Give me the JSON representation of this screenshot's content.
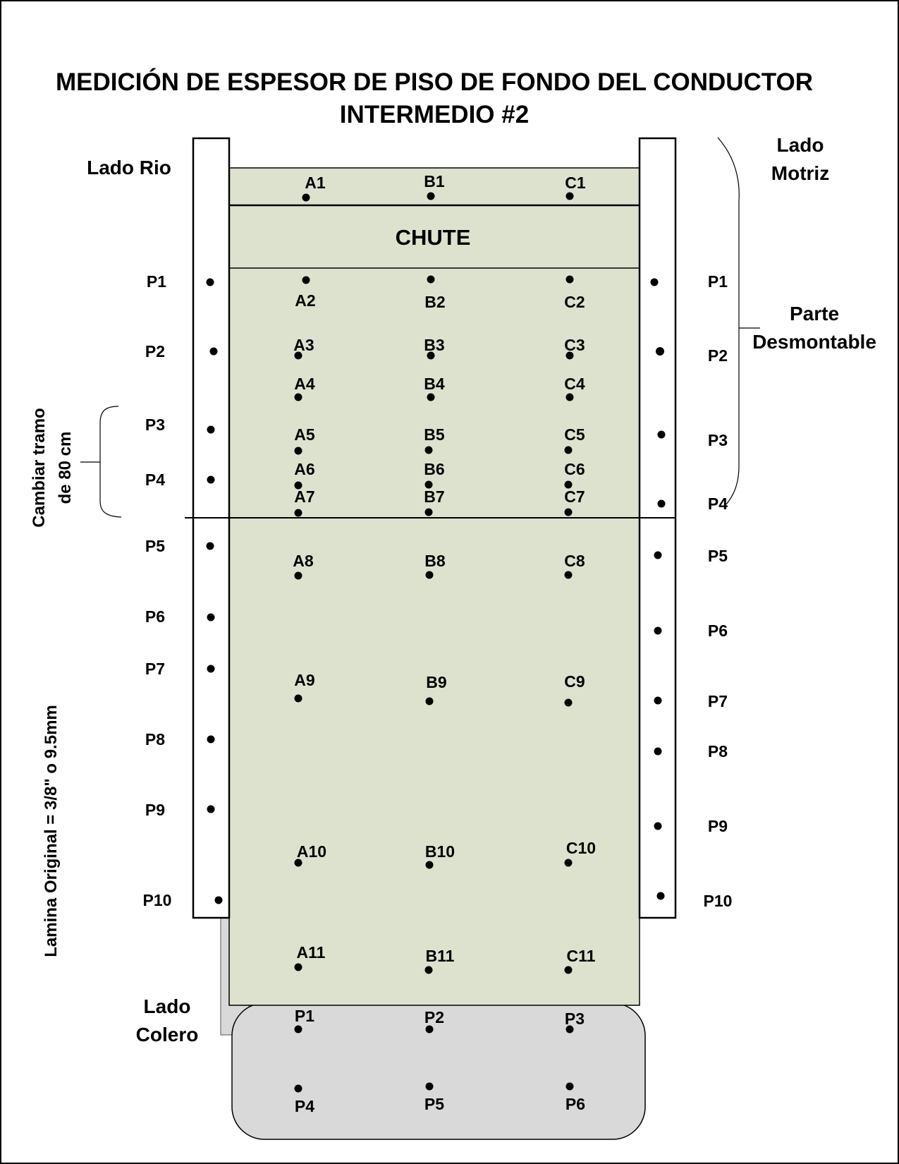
{
  "title": {
    "line1": "MEDICIÓN DE ESPESOR DE PISO DE FONDO DEL CONDUCTOR",
    "line2": "INTERMEDIO #2"
  },
  "labels": {
    "lado_rio": "Lado Rio",
    "lado_motriz_1": "Lado",
    "lado_motriz_2": "Motriz",
    "parte_desmontable_1": "Parte",
    "parte_desmontable_2": "Desmontable",
    "lado_colero_1": "Lado",
    "lado_colero_2": "Colero",
    "chute": "CHUTE",
    "cambiar_tramo_1": "Cambiar tramo",
    "cambiar_tramo_2": "de 80 cm",
    "lamina_original": "Lamina Original = 3/8\" o 9.5mm"
  },
  "colors": {
    "floor": "#dde2cf",
    "tail": "#d9d9d9",
    "stroke": "#000000",
    "background": "#ffffff"
  },
  "floor_points": [
    "A1",
    "B1",
    "C1",
    "A2",
    "B2",
    "C2",
    "A3",
    "B3",
    "C3",
    "A4",
    "B4",
    "C4",
    "A5",
    "B5",
    "C5",
    "A6",
    "B6",
    "C6",
    "A7",
    "B7",
    "C7",
    "A8",
    "B8",
    "C8",
    "A9",
    "B9",
    "C9",
    "A10",
    "B10",
    "C10",
    "A11",
    "B11",
    "C11"
  ],
  "left_wall_points": [
    "P1",
    "P2",
    "P3",
    "P4",
    "P5",
    "P6",
    "P7",
    "P8",
    "P9",
    "P10"
  ],
  "right_wall_points": [
    "P1",
    "P2",
    "P3",
    "P4",
    "P5",
    "P6",
    "P7",
    "P8",
    "P9",
    "P10"
  ],
  "tail_points": [
    "P1",
    "P2",
    "P3",
    "P4",
    "P5",
    "P6"
  ]
}
